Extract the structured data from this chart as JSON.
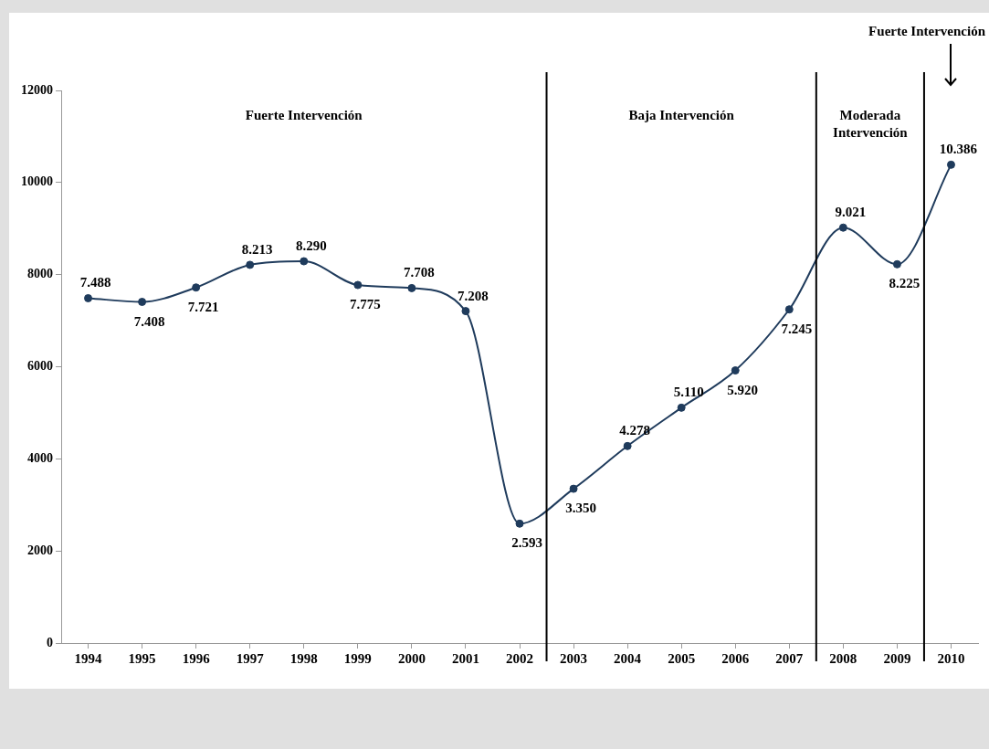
{
  "chart_data": {
    "type": "line",
    "x": [
      1994,
      1995,
      1996,
      1997,
      1998,
      1999,
      2000,
      2001,
      2002,
      2003,
      2004,
      2005,
      2006,
      2007,
      2008,
      2009,
      2010
    ],
    "series": [
      {
        "color": "#1f3b5c",
        "values": [
          7488,
          7408,
          7721,
          8213,
          8290,
          7775,
          7708,
          7208,
          2593,
          3350,
          4278,
          5110,
          5920,
          7245,
          9021,
          8225,
          10386
        ],
        "value_labels": [
          "7.488",
          "7.408",
          "7.721",
          "8.213",
          "8.290",
          "7.775",
          "7.708",
          "7.208",
          "2.593",
          "3.350",
          "4.278",
          "5.110",
          "5.920",
          "7.245",
          "9.021",
          "8.225",
          "10.386"
        ]
      }
    ],
    "xlim": [
      1993.5,
      2010.5
    ],
    "xticks": [
      1994,
      1995,
      1996,
      1997,
      1998,
      1999,
      2000,
      2001,
      2002,
      2003,
      2004,
      2005,
      2006,
      2007,
      2008,
      2009,
      2010
    ],
    "ylim": [
      0,
      12000
    ],
    "yticks": [
      0,
      2000,
      4000,
      6000,
      8000,
      10000,
      12000
    ],
    "ref_lines": [
      {
        "axis": "x",
        "value": 2002.5,
        "color": "#000000"
      },
      {
        "axis": "x",
        "value": 2007.5,
        "color": "#000000"
      },
      {
        "axis": "x",
        "value": 2009.5,
        "color": "#000000"
      }
    ],
    "annotations": [
      "Fuerte Intervención",
      "Baja Intervención",
      "Moderada Intervención",
      "Fuerte Intervención"
    ],
    "marker": "circle",
    "grid": false,
    "legend": false
  }
}
